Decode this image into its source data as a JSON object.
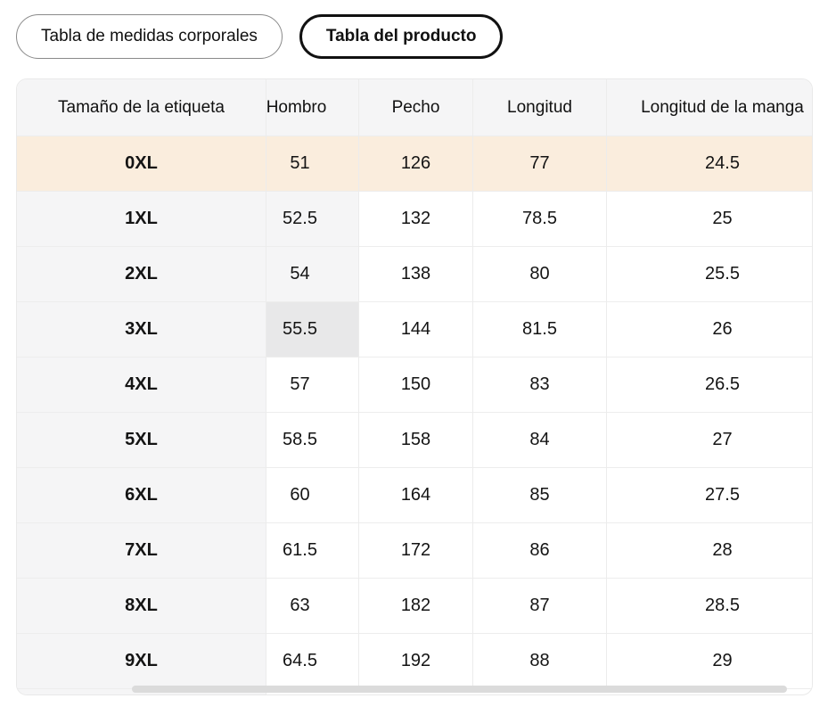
{
  "tabs": [
    {
      "label": "Tabla de medidas corporales",
      "selected": false
    },
    {
      "label": "Tabla del producto",
      "selected": true
    }
  ],
  "table": {
    "sticky_header": "Tamaño de la etiqueta",
    "columns": [
      "Hombro",
      "Pecho",
      "Longitud",
      "Longitud de la manga"
    ],
    "rows": [
      {
        "size": "0XL",
        "values": [
          "51",
          "126",
          "77",
          "24.5"
        ],
        "row_bg": "peach",
        "hombro_bg": null
      },
      {
        "size": "1XL",
        "values": [
          "52.5",
          "132",
          "78.5",
          "25"
        ],
        "row_bg": null,
        "hombro_bg": "gray"
      },
      {
        "size": "2XL",
        "values": [
          "54",
          "138",
          "80",
          "25.5"
        ],
        "row_bg": null,
        "hombro_bg": "gray"
      },
      {
        "size": "3XL",
        "values": [
          "55.5",
          "144",
          "81.5",
          "26"
        ],
        "row_bg": null,
        "hombro_bg": "dark"
      },
      {
        "size": "4XL",
        "values": [
          "57",
          "150",
          "83",
          "26.5"
        ],
        "row_bg": null,
        "hombro_bg": null
      },
      {
        "size": "5XL",
        "values": [
          "58.5",
          "158",
          "84",
          "27"
        ],
        "row_bg": null,
        "hombro_bg": null
      },
      {
        "size": "6XL",
        "values": [
          "60",
          "164",
          "85",
          "27.5"
        ],
        "row_bg": null,
        "hombro_bg": null
      },
      {
        "size": "7XL",
        "values": [
          "61.5",
          "172",
          "86",
          "28"
        ],
        "row_bg": null,
        "hombro_bg": null
      },
      {
        "size": "8XL",
        "values": [
          "63",
          "182",
          "87",
          "28.5"
        ],
        "row_bg": null,
        "hombro_bg": null
      },
      {
        "size": "9XL",
        "values": [
          "64.5",
          "192",
          "88",
          "29"
        ],
        "row_bg": null,
        "hombro_bg": null
      }
    ]
  },
  "colors": {
    "highlight_row": "#faeddd",
    "header_bg": "#f5f5f6",
    "sticky_col_bg": "#f5f5f6",
    "pressed_cell_bg": "#e8e8e9",
    "gridline": "#ececec",
    "scrollbar_thumb": "#dbdbdb",
    "selected_tab_border": "#111111",
    "text": "#141414"
  },
  "scrollbar": {
    "orientation": "horizontal",
    "position": "partially-scrolled"
  }
}
